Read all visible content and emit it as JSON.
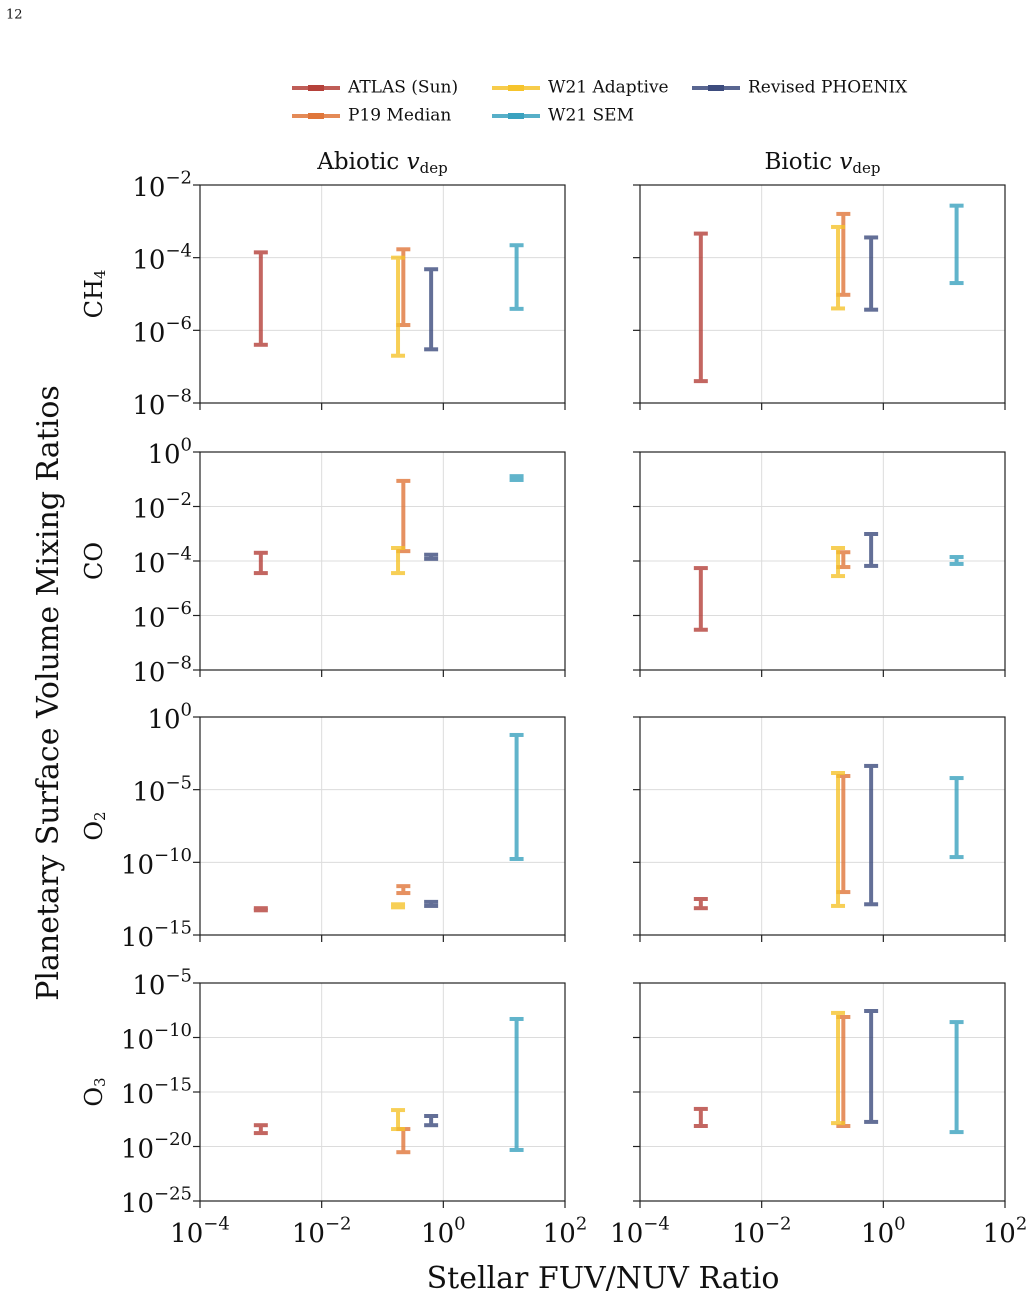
{
  "page_number": "12",
  "chart_data": {
    "type": "errorbar",
    "xlabel": "Stellar FUV/NUV Ratio",
    "ylabel": "Planetary Surface Volume Mixing Ratios",
    "log": true,
    "grid": true,
    "xlim": [
      0.0001,
      100
    ],
    "xticks": [
      {
        "value": 0.0001,
        "label": "10^−4"
      },
      {
        "value": 0.01,
        "label": "10^−2"
      },
      {
        "value": 1,
        "label": "10^0"
      },
      {
        "value": 100,
        "label": "10^2"
      }
    ],
    "columns": [
      {
        "text": "Abiotic",
        "symbol": "v",
        "subscript": "dep"
      },
      {
        "text": "Biotic",
        "symbol": "v",
        "subscript": "dep"
      }
    ],
    "rows": [
      {
        "label": {
          "text": "CH",
          "subscript": "4"
        },
        "ylim": [
          1e-08,
          0.01
        ],
        "yticks": [
          {
            "value": 1e-08,
            "label": "10^−8"
          },
          {
            "value": 1e-06,
            "label": "10^−6"
          },
          {
            "value": 0.0001,
            "label": "10^−4"
          },
          {
            "value": 0.01,
            "label": "10^−2"
          }
        ]
      },
      {
        "label": {
          "text": "CO"
        },
        "ylim": [
          1e-08,
          1
        ],
        "yticks": [
          {
            "value": 1e-08,
            "label": "10^−8"
          },
          {
            "value": 1e-06,
            "label": "10^−6"
          },
          {
            "value": 0.0001,
            "label": "10^−4"
          },
          {
            "value": 0.01,
            "label": "10^−2"
          },
          {
            "value": 1,
            "label": "10^0"
          }
        ]
      },
      {
        "label": {
          "text": "O",
          "subscript": "2"
        },
        "ylim": [
          1e-15,
          1
        ],
        "yticks": [
          {
            "value": 1e-15,
            "label": "10^−15"
          },
          {
            "value": 1e-10,
            "label": "10^−10"
          },
          {
            "value": 1e-05,
            "label": "10^−5"
          },
          {
            "value": 1,
            "label": "10^0"
          }
        ]
      },
      {
        "label": {
          "text": "O",
          "subscript": "3"
        },
        "ylim": [
          1e-25,
          1e-05
        ],
        "yticks": [
          {
            "value": 1e-25,
            "label": "10^−25"
          },
          {
            "value": 1e-20,
            "label": "10^−20"
          },
          {
            "value": 1e-15,
            "label": "10^−15"
          },
          {
            "value": 1e-10,
            "label": "10^−10"
          },
          {
            "value": 1e-05,
            "label": "10^−5"
          }
        ]
      }
    ],
    "series": [
      {
        "name": "ATLAS (Sun)",
        "color": "#b5413a",
        "x": 0.001,
        "ranges": [
          [
            4e-07,
            0.00014
          ],
          [
            4e-08,
            0.00046
          ],
          [
            3.6e-05,
            0.0002
          ],
          [
            3e-07,
            5.5e-05
          ],
          [
            5e-14,
            7e-14
          ],
          [
            7e-14,
            3e-13
          ],
          [
            1.7e-19,
            9e-19
          ],
          [
            7.6e-19,
            2.8e-17
          ]
        ]
      },
      {
        "name": "P19 Median",
        "color": "#e0763a",
        "x": 0.22,
        "ranges": [
          [
            1.4e-06,
            0.00017
          ],
          [
            9.5e-06,
            0.0016
          ],
          [
            0.00023,
            0.087
          ],
          [
            6e-05,
            0.00021
          ],
          [
            7.7e-13,
            2.3e-12
          ],
          [
            9e-13,
            8.7e-05
          ],
          [
            3e-21,
            4e-19
          ],
          [
            7.6e-19,
            7.6e-09
          ]
        ]
      },
      {
        "name": "W21 Adaptive",
        "color": "#f6c42c",
        "x": 0.18,
        "ranges": [
          [
            2e-07,
            0.0001
          ],
          [
            4e-06,
            0.0007
          ],
          [
            3.6e-05,
            0.0003
          ],
          [
            2.8e-05,
            0.0003
          ],
          [
            8e-14,
            1.3e-13
          ],
          [
            1e-13,
            0.00014
          ],
          [
            4e-19,
            2.2e-17
          ],
          [
            1.4e-18,
            1.8e-08
          ]
        ]
      },
      {
        "name": "W21 SEM",
        "color": "#3aa2bf",
        "x": 16,
        "ranges": [
          [
            3.9e-06,
            0.00022
          ],
          [
            2e-05,
            0.0027
          ],
          [
            0.094,
            0.13
          ],
          [
            7.8e-05,
            0.00014
          ],
          [
            1.7e-10,
            0.058
          ],
          [
            2.3e-10,
            6.3e-05
          ],
          [
            4.8e-21,
            5e-09
          ],
          [
            2.1e-19,
            2.6e-09
          ]
        ]
      },
      {
        "name": "Revised PHOENIX",
        "color": "#3d4c7e",
        "x": 0.63,
        "ranges": [
          [
            3e-07,
            4.8e-05
          ],
          [
            3.7e-06,
            0.00036
          ],
          [
            0.00012,
            0.00017
          ],
          [
            6.6e-05,
            0.00098
          ],
          [
            1e-13,
            1.9e-13
          ],
          [
            1.3e-13,
            0.00043
          ],
          [
            9e-19,
            6.3e-18
          ],
          [
            1.8e-18,
            2.7e-08
          ]
        ]
      }
    ]
  }
}
